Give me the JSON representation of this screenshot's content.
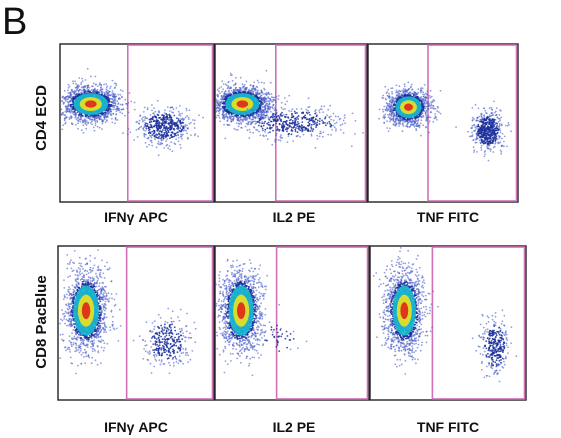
{
  "panel_label": "B",
  "chart_data": {
    "type": "scatter",
    "title": "",
    "rows": [
      {
        "ylabel": "CD4 ECD",
        "plots": [
          {
            "xlabel": "IFNγ APC",
            "populations": [
              {
                "x": 0.2,
                "y": 0.62,
                "sx": 0.09,
                "sy": 0.055,
                "n": 1600,
                "core": true
              },
              {
                "x": 0.68,
                "y": 0.48,
                "sx": 0.085,
                "sy": 0.055,
                "n": 480,
                "core": false
              }
            ]
          },
          {
            "xlabel": "IL2 PE",
            "populations": [
              {
                "x": 0.18,
                "y": 0.62,
                "sx": 0.09,
                "sy": 0.055,
                "n": 1600,
                "core": true
              },
              {
                "x": 0.52,
                "y": 0.5,
                "sx": 0.17,
                "sy": 0.05,
                "n": 420,
                "core": false
              }
            ]
          },
          {
            "xlabel": "TNF FITC",
            "populations": [
              {
                "x": 0.27,
                "y": 0.6,
                "sx": 0.07,
                "sy": 0.055,
                "n": 1300,
                "core": true
              },
              {
                "x": 0.8,
                "y": 0.45,
                "sx": 0.05,
                "sy": 0.06,
                "n": 520,
                "core": false
              }
            ]
          }
        ]
      },
      {
        "ylabel": "CD8 PacBlue",
        "plots": [
          {
            "xlabel": "IFNγ APC",
            "populations": [
              {
                "x": 0.18,
                "y": 0.58,
                "sx": 0.065,
                "sy": 0.13,
                "n": 1600,
                "core": true
              },
              {
                "x": 0.7,
                "y": 0.38,
                "sx": 0.07,
                "sy": 0.08,
                "n": 300,
                "core": false
              }
            ]
          },
          {
            "xlabel": "IL2 PE",
            "populations": [
              {
                "x": 0.17,
                "y": 0.58,
                "sx": 0.065,
                "sy": 0.13,
                "n": 1600,
                "core": true
              },
              {
                "x": 0.42,
                "y": 0.4,
                "sx": 0.07,
                "sy": 0.06,
                "n": 40,
                "core": false
              }
            ]
          },
          {
            "xlabel": "TNF FITC",
            "populations": [
              {
                "x": 0.22,
                "y": 0.58,
                "sx": 0.06,
                "sy": 0.13,
                "n": 1500,
                "core": true
              },
              {
                "x": 0.8,
                "y": 0.35,
                "sx": 0.045,
                "sy": 0.09,
                "n": 300,
                "core": false
              }
            ]
          }
        ]
      }
    ],
    "gate_x": [
      0.44,
      0.4,
      0.4
    ],
    "colors": {
      "sparse": "#4a5ec8",
      "dense": "#1a2f9c",
      "mid": "#18b8d0",
      "high": "#e8e020",
      "peak": "#e02818",
      "gate": "#d070b8"
    }
  }
}
